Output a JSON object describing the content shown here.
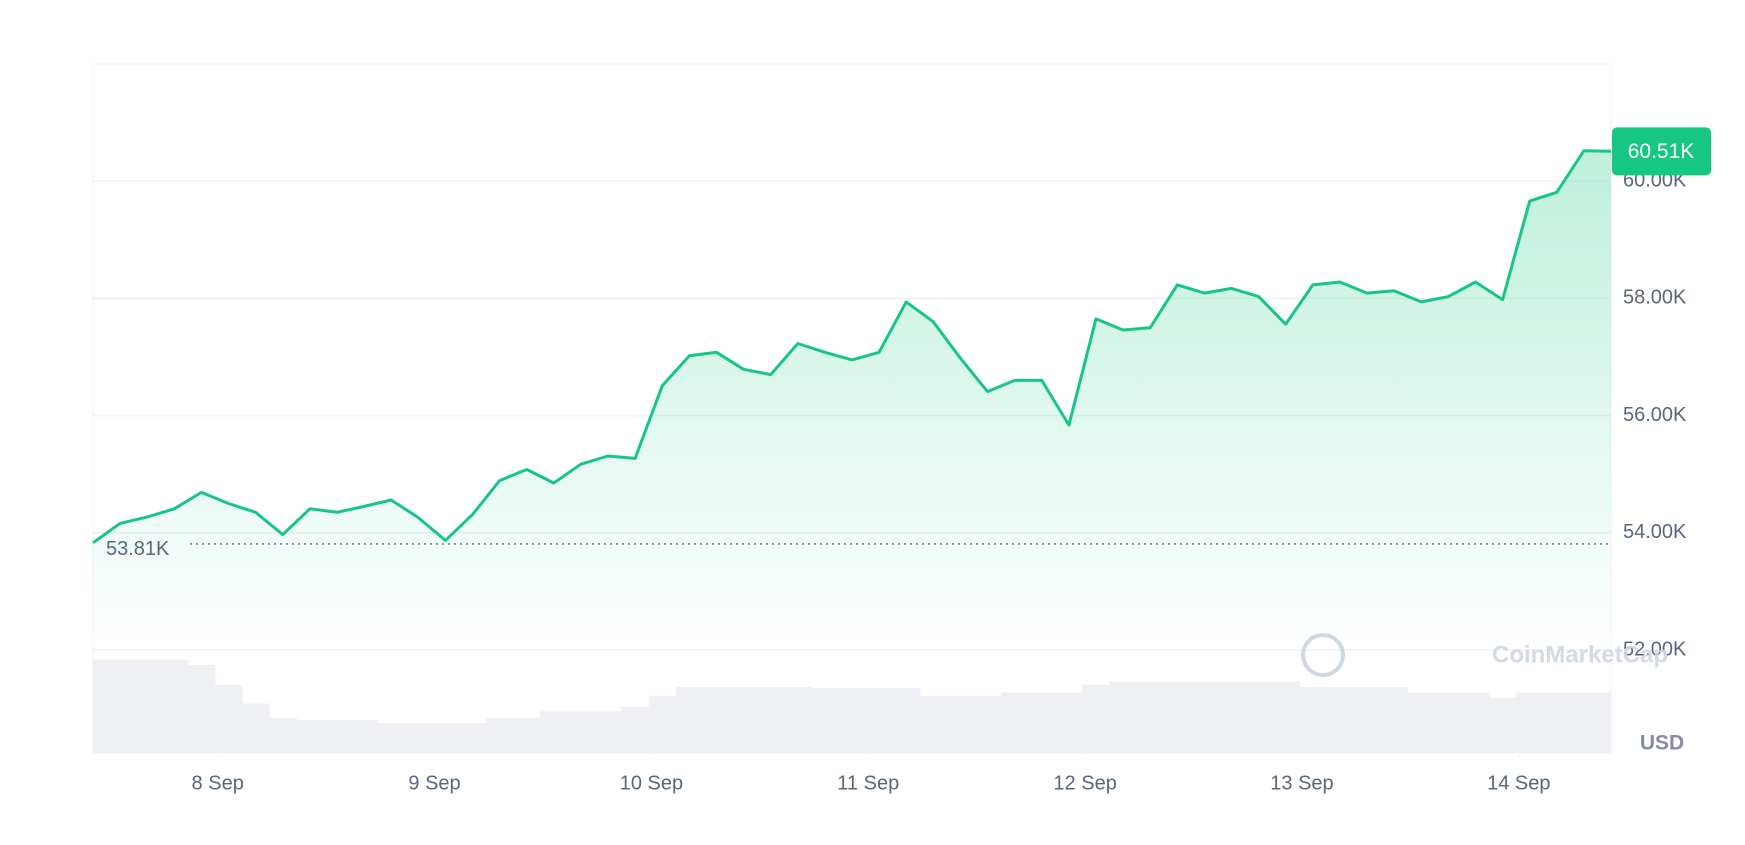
{
  "chart_data": {
    "type": "line",
    "currency": "USD",
    "watermark": "CoinMarketCap",
    "color": "#16c784",
    "volume_color": "#eff0f3",
    "grid": true,
    "xlim": [
      0,
      56
    ],
    "xticks": [
      {
        "value": 4.6,
        "label": "8 Sep"
      },
      {
        "value": 12.6,
        "label": "9 Sep"
      },
      {
        "value": 20.6,
        "label": "10 Sep"
      },
      {
        "value": 28.6,
        "label": "11 Sep"
      },
      {
        "value": 36.6,
        "label": "12 Sep"
      },
      {
        "value": 44.6,
        "label": "13 Sep"
      },
      {
        "value": 52.6,
        "label": "14 Sep"
      }
    ],
    "ylim": [
      52,
      62
    ],
    "yticks": [
      {
        "value": 52,
        "label": "52.00K"
      },
      {
        "value": 54,
        "label": "54.00K"
      },
      {
        "value": 56,
        "label": "56.00K"
      },
      {
        "value": 58,
        "label": "58.00K"
      },
      {
        "value": 60,
        "label": "60.00K"
      }
    ],
    "open_price": {
      "value": 53.81,
      "label": "53.81K"
    },
    "last_price": {
      "value": 60.51,
      "label": "60.51K"
    },
    "values": [
      53.83,
      54.16,
      54.27,
      54.41,
      54.69,
      54.5,
      54.35,
      53.97,
      54.41,
      54.35,
      54.45,
      54.56,
      54.26,
      53.87,
      54.31,
      54.89,
      55.08,
      54.85,
      55.17,
      55.31,
      55.27,
      56.51,
      57.02,
      57.08,
      56.79,
      56.7,
      57.23,
      57.08,
      56.95,
      57.08,
      57.94,
      57.6,
      56.98,
      56.41,
      56.6,
      56.6,
      55.84,
      57.65,
      57.46,
      57.5,
      58.23,
      58.09,
      58.17,
      58.03,
      57.56,
      58.23,
      58.28,
      58.09,
      58.13,
      57.94,
      58.03,
      58.28,
      57.98,
      59.66,
      59.81,
      60.52,
      60.51
    ],
    "volume_lim": [
      0,
      100
    ],
    "volume": [
      85,
      85,
      85,
      85,
      80,
      62,
      45,
      32,
      30,
      30,
      30,
      27,
      27,
      27,
      27,
      32,
      32,
      38,
      38,
      38,
      42,
      52,
      60,
      60,
      60,
      60,
      60,
      59,
      59,
      59,
      59,
      52,
      52,
      52,
      55,
      55,
      55,
      62,
      65,
      65,
      65,
      65,
      65,
      65,
      65,
      60,
      60,
      60,
      60,
      55,
      55,
      55,
      50,
      55,
      55,
      55,
      55
    ]
  }
}
